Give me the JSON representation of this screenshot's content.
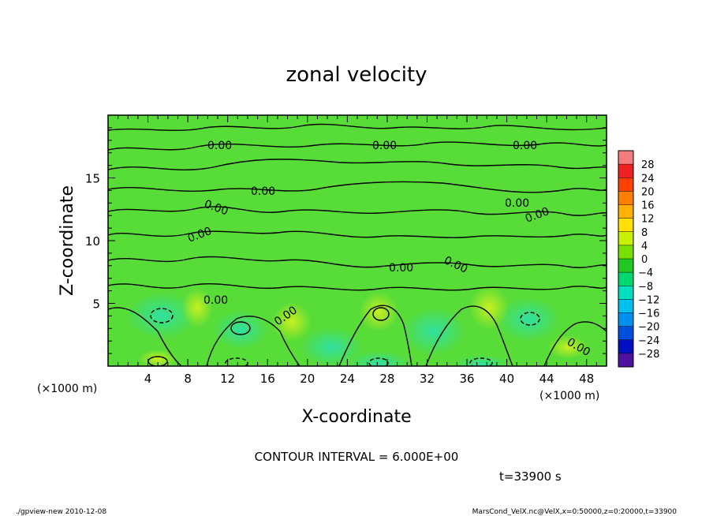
{
  "chart_data": {
    "type": "heatmap",
    "title": "zonal velocity",
    "xlabel": "X-coordinate",
    "ylabel": "Z-coordinate",
    "x_unit": "(×1000 m)",
    "y_unit": "(×1000 m)",
    "xlim": [
      0,
      50
    ],
    "ylim": [
      0,
      20
    ],
    "x_ticks": [
      4,
      8,
      12,
      16,
      20,
      24,
      28,
      32,
      36,
      40,
      44,
      48
    ],
    "y_ticks": [
      5,
      10,
      15
    ],
    "colorbar": {
      "labels": [
        28,
        24,
        20,
        16,
        12,
        8,
        4,
        0,
        -4,
        -8,
        -12,
        -16,
        -20,
        -24,
        -28
      ],
      "colors": [
        "#f47c7c",
        "#ee2020",
        "#ff4000",
        "#ff8000",
        "#ffb000",
        "#ffe000",
        "#c8f000",
        "#78e000",
        "#20c820",
        "#00d870",
        "#00e0c0",
        "#00c0f0",
        "#0090f0",
        "#0050e0",
        "#0010c0",
        "#5010a0"
      ]
    },
    "contour_interval": "CONTOUR INTERVAL = 6.000E+00",
    "time_label": "t=33900 s",
    "contour_labels": [
      "0.00",
      "0.00",
      "0.00",
      "0.00",
      "0.00",
      "0.00",
      "0.00",
      "0.00",
      "0.00",
      "0.00",
      "0.00",
      "0.00",
      "0.00"
    ],
    "footer_left": "./gpview-new  2010-12-08",
    "footer_right": "MarsCond_VelX.nc@VelX,x=0:50000,z=0:20000,t=33900"
  }
}
